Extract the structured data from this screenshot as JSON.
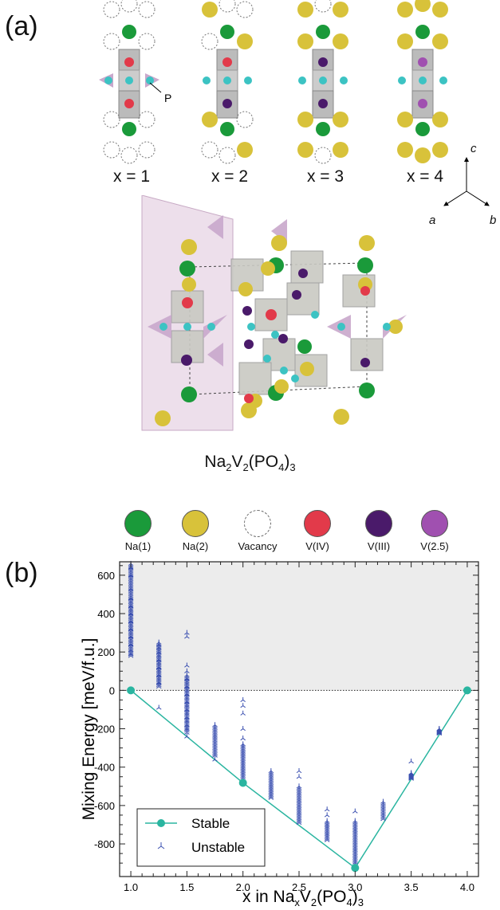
{
  "panel_a": {
    "label": "(a)",
    "configs": [
      "x = 1",
      "x = 2",
      "x = 3",
      "x = 4"
    ],
    "p_label": "P",
    "axes": {
      "c": "c",
      "a": "a",
      "b": "b"
    },
    "formula": {
      "pre": "Na",
      "sub1": "2",
      "mid": "V",
      "sub2": "2",
      "post": "(PO",
      "sub3": "4",
      "end": ")",
      "sub4": "3"
    },
    "legend": [
      {
        "label": "Na(1)",
        "color": "#1a9a3a"
      },
      {
        "label": "Na(2)",
        "color": "#d8c23a"
      },
      {
        "label": "Vacancy",
        "color": "#ffffff"
      },
      {
        "label": "V(IV)",
        "color": "#e23a4a"
      },
      {
        "label": "V(III)",
        "color": "#4a1a6a"
      },
      {
        "label": "V(2.5)",
        "color": "#a050b0"
      }
    ]
  },
  "panel_b": {
    "label": "(b)",
    "legend_stable": "Stable",
    "legend_unstable": "Unstable"
  },
  "chart_data": {
    "type": "scatter",
    "xlabel": {
      "pre": "x in Na",
      "sub1": "x",
      "mid": "V",
      "sub2": "2",
      "post": "(PO",
      "sub3": "4",
      "end": ")",
      "sub4": "3"
    },
    "ylabel": "Mixing Energy [meV/f.u.]",
    "xlim": [
      0.9,
      4.1
    ],
    "ylim": [
      -970,
      670
    ],
    "xticks": [
      "1.0",
      "1.5",
      "2.0",
      "2.5",
      "3.0",
      "3.5",
      "4.0"
    ],
    "yticks": [
      "600",
      "400",
      "200",
      "0",
      "-200",
      "-400",
      "-600",
      "-800"
    ],
    "series": [
      {
        "name": "Stable",
        "color": "#2ab5a0",
        "points": [
          [
            1.0,
            0
          ],
          [
            2.0,
            -482
          ],
          [
            3.0,
            -925
          ],
          [
            4.0,
            0
          ]
        ]
      },
      {
        "name": "Unstable",
        "color": "#3a4fb0",
        "clusters": [
          {
            "x": 1.0,
            "ymin": 180,
            "ymax": 660,
            "extra": [
              640,
              600,
              530,
              480,
              460,
              440,
              420,
              400,
              380,
              360,
              340,
              320,
              300,
              280,
              260,
              240,
              210,
              190
            ]
          },
          {
            "x": 1.25,
            "ymin": 20,
            "ymax": 250,
            "extra": [
              -90,
              240,
              220,
              200,
              180,
              160,
              140,
              120,
              100,
              80,
              60,
              40
            ]
          },
          {
            "x": 1.5,
            "ymin": -210,
            "ymax": 80,
            "extra": [
              300,
              280,
              130,
              100,
              -240,
              -220,
              -200,
              -180,
              -160,
              -140,
              -120,
              -100,
              -80,
              -60,
              -40,
              -20,
              0,
              20,
              40,
              60
            ]
          },
          {
            "x": 1.75,
            "ymin": -340,
            "ymax": -180,
            "extra": [
              -360
            ]
          },
          {
            "x": 2.0,
            "ymin": -460,
            "ymax": -280,
            "extra": [
              -50,
              -80,
              -120,
              -200,
              -250,
              -480
            ]
          },
          {
            "x": 2.25,
            "ymin": -560,
            "ymax": -420,
            "extra": []
          },
          {
            "x": 2.5,
            "ymin": -690,
            "ymax": -500,
            "extra": [
              -420,
              -450
            ]
          },
          {
            "x": 2.75,
            "ymin": -780,
            "ymax": -680,
            "extra": [
              -620,
              -650
            ]
          },
          {
            "x": 3.0,
            "ymin": -920,
            "ymax": -680,
            "extra": [
              -630
            ]
          },
          {
            "x": 3.25,
            "ymin": -670,
            "ymax": -580,
            "extra": []
          },
          {
            "x": 3.5,
            "ymin": -460,
            "ymax": -430,
            "extra": [
              -370
            ]
          },
          {
            "x": 3.75,
            "ymin": -225,
            "ymax": -200,
            "extra": []
          }
        ]
      }
    ],
    "grid": false,
    "legend_position": "bottom-left",
    "shaded_region": "y > 0"
  }
}
